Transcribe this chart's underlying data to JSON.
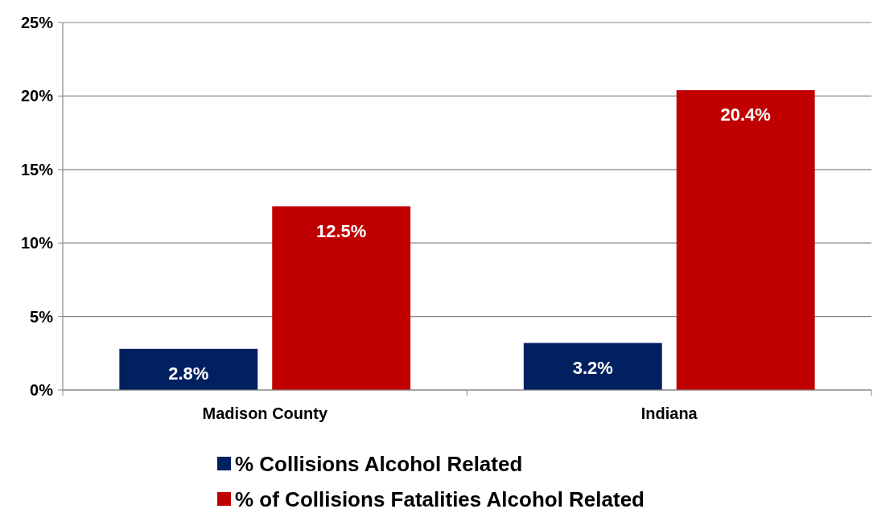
{
  "chart_data": {
    "type": "bar",
    "categories": [
      "Madison County",
      "Indiana"
    ],
    "series": [
      {
        "name": "% Collisions Alcohol Related",
        "color": "#002060",
        "values": [
          2.8,
          3.2
        ],
        "value_labels": [
          "2.8%",
          "3.2%"
        ]
      },
      {
        "name": "% of Collisions Fatalities Alcohol Related",
        "color": "#c00000",
        "values": [
          12.5,
          20.4
        ],
        "value_labels": [
          "12.5%",
          "20.4%"
        ]
      }
    ],
    "ylim": [
      0,
      25
    ],
    "yticks": [
      {
        "value": 0,
        "label": "0%"
      },
      {
        "value": 5,
        "label": "5%"
      },
      {
        "value": 10,
        "label": "10%"
      },
      {
        "value": 15,
        "label": "15%"
      },
      {
        "value": 20,
        "label": "20%"
      },
      {
        "value": 25,
        "label": "25%"
      }
    ],
    "grid": "y",
    "legend": "bottom"
  }
}
